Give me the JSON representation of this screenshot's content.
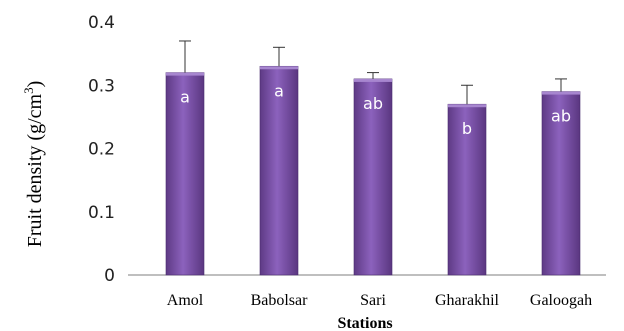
{
  "chart_data": {
    "type": "bar",
    "categories": [
      "Amol",
      "Babolsar",
      "Sari",
      "Gharakhil",
      "Galoogah"
    ],
    "values": [
      0.32,
      0.33,
      0.31,
      0.27,
      0.29
    ],
    "error_upper": [
      0.37,
      0.36,
      0.32,
      0.3,
      0.31
    ],
    "letters": [
      "a",
      "a",
      "ab",
      "b",
      "ab"
    ],
    "ylabel_base": "Fruit density (g/cm",
    "ylabel_sup": "3",
    "ylabel_end": ")",
    "xlabel": "Stations",
    "ylim": [
      0,
      0.4
    ],
    "yticks": [
      "0",
      "0.1",
      "0.2",
      "0.3",
      "0.4"
    ],
    "bar_color": "#7b4fa8",
    "grid": false
  }
}
